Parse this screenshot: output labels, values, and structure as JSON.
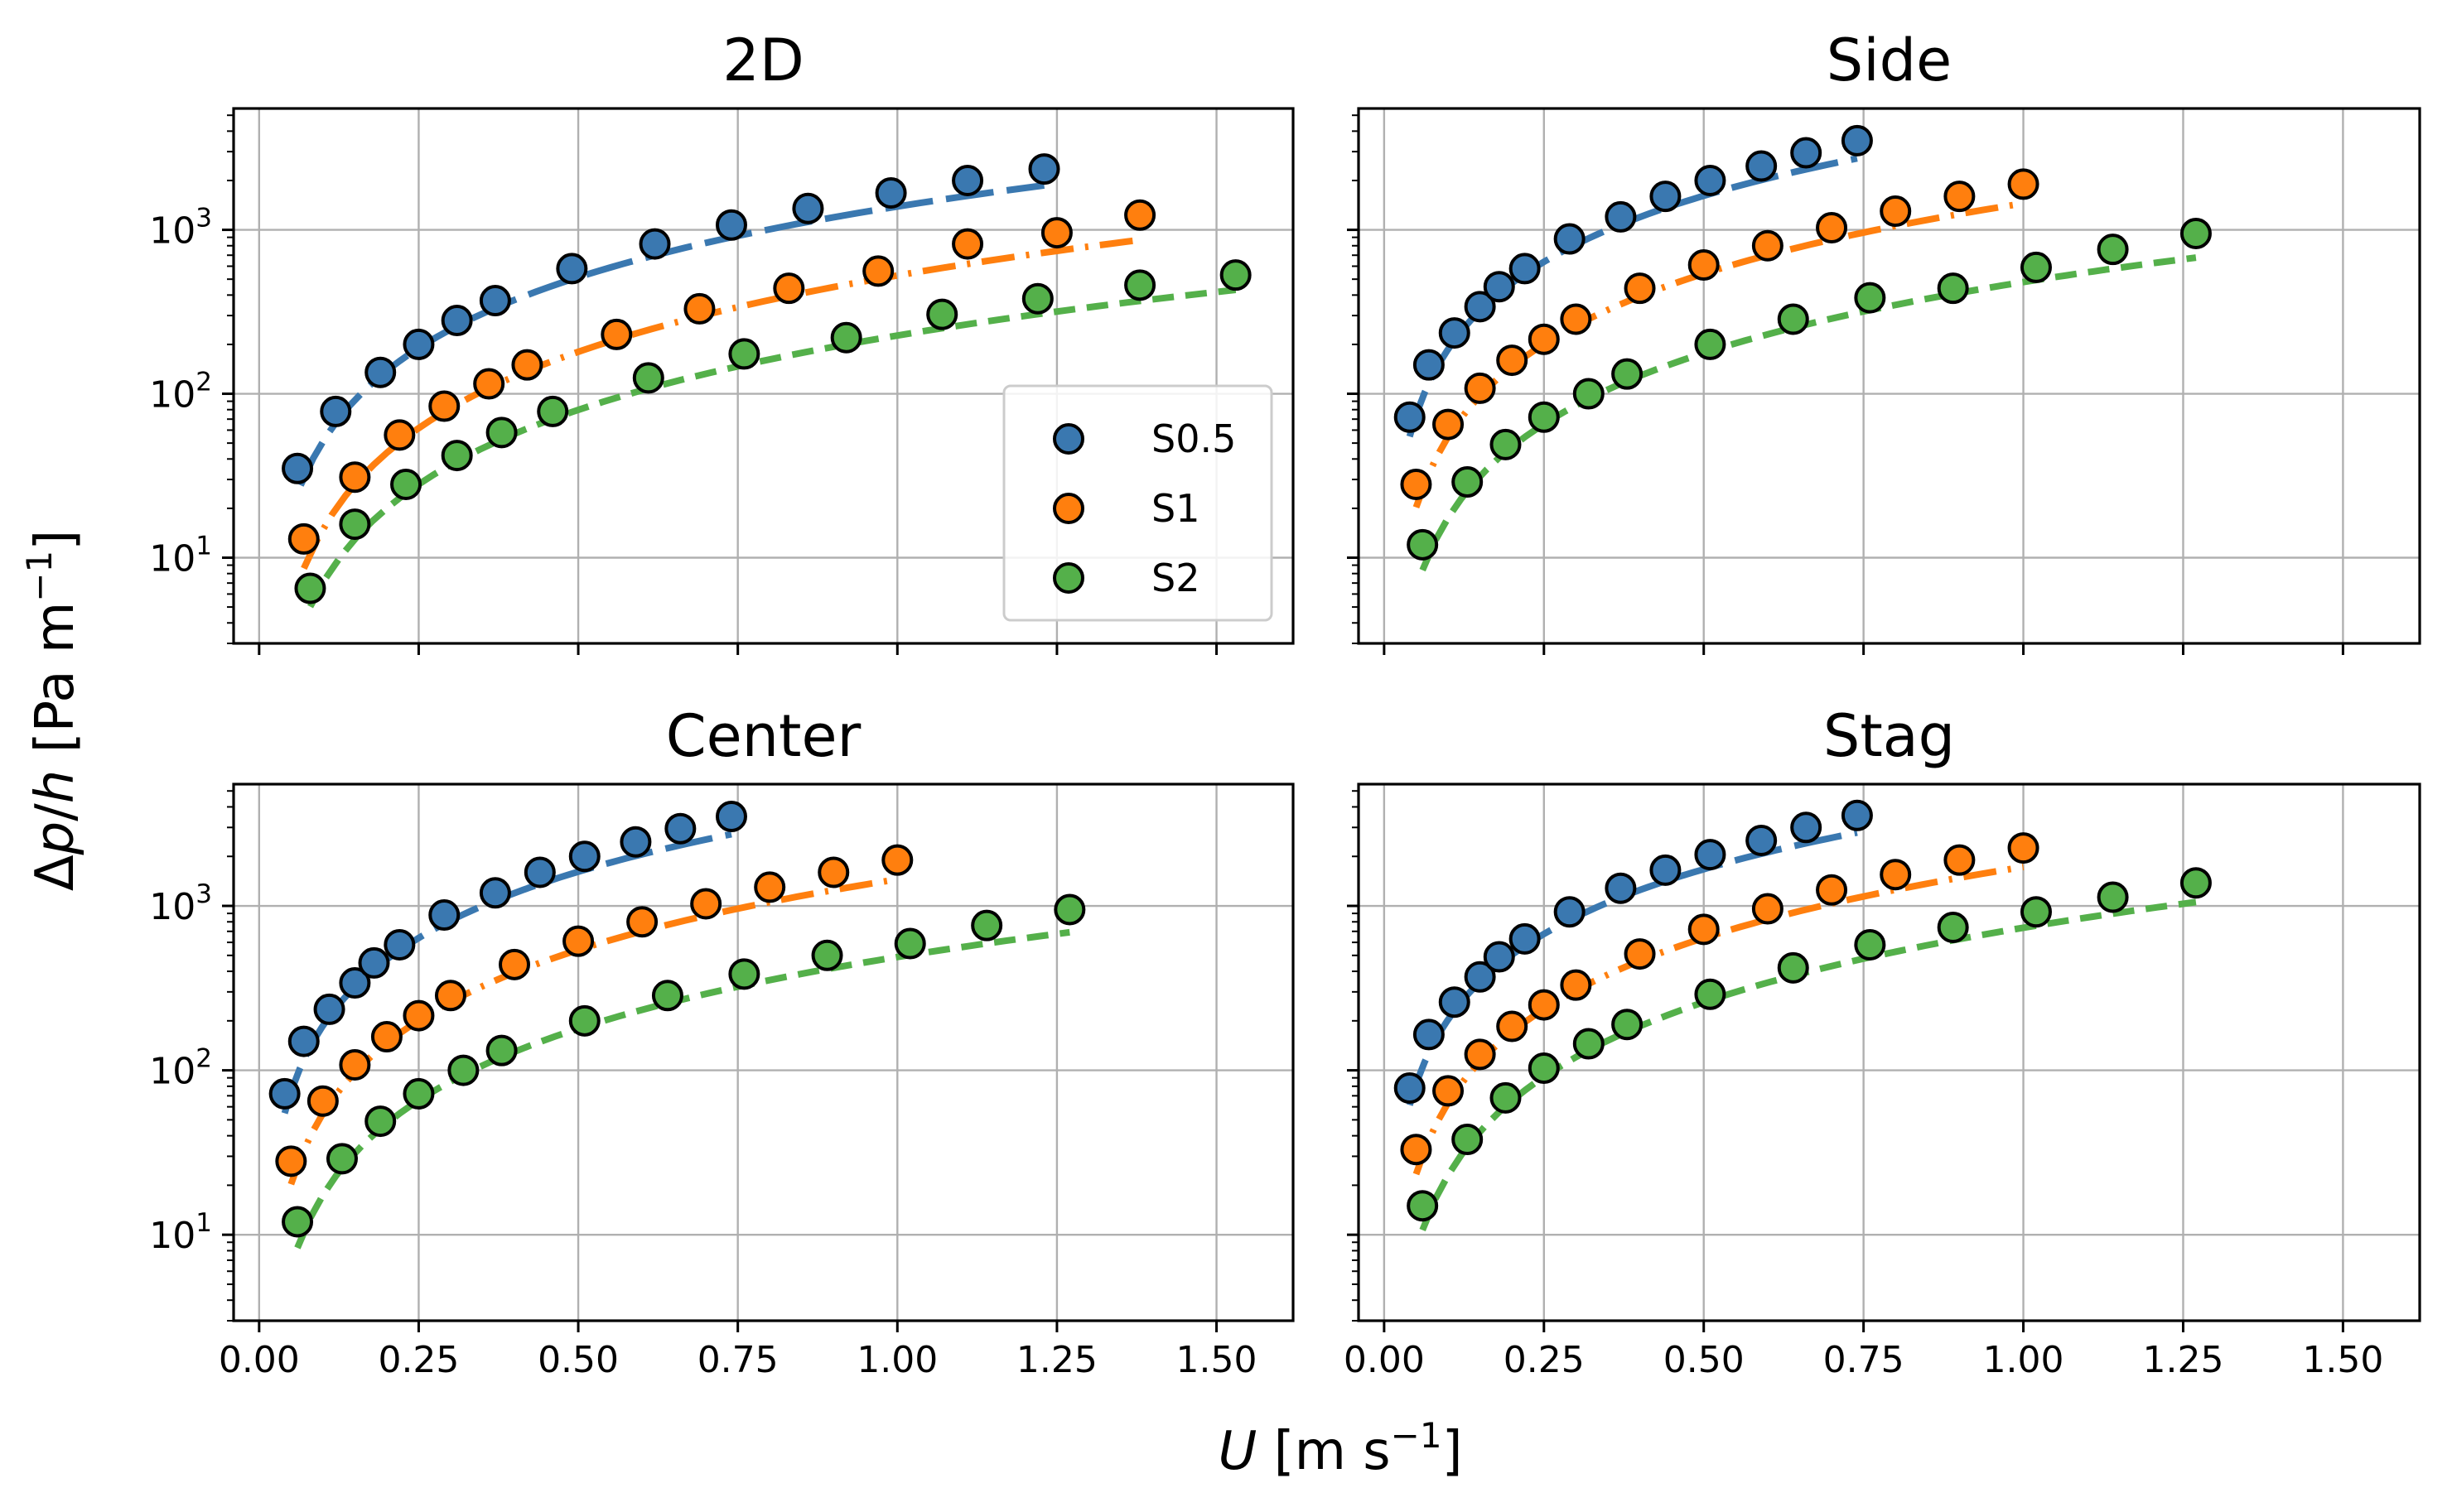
{
  "chart_data": {
    "type": "scatter",
    "ylabel": "Δp/h [Pa m⁻¹]",
    "xlabel": "U [m s⁻¹]",
    "yscale": "log",
    "xlim": [
      -0.04,
      1.62
    ],
    "ylim": [
      3,
      5500
    ],
    "x_ticks": [
      "0.00",
      "0.25",
      "0.50",
      "0.75",
      "1.00",
      "1.25",
      "1.50"
    ],
    "x_tick_values": [
      0,
      0.25,
      0.5,
      0.75,
      1.0,
      1.25,
      1.5
    ],
    "y_major_ticks": [
      10,
      100,
      1000
    ],
    "y_tick_labels": [
      {
        "base": "10",
        "exp": "1"
      },
      {
        "base": "10",
        "exp": "2"
      },
      {
        "base": "10",
        "exp": "3"
      }
    ],
    "grid": true,
    "legend": {
      "placement": "lower-right of first panel",
      "entries": [
        "S0.5",
        "S1",
        "S2"
      ]
    },
    "colors": {
      "S0.5": "#3a78b0",
      "S1": "#ff7f0e",
      "S2": "#54b04a"
    },
    "panels": [
      {
        "title": "2D",
        "series": [
          {
            "name": "S0.5",
            "x": [
              0.06,
              0.12,
              0.19,
              0.25,
              0.31,
              0.37,
              0.49,
              0.62,
              0.74,
              0.86,
              0.99,
              1.11,
              1.23
            ],
            "y": [
              35,
              78,
              135,
              200,
              280,
              370,
              580,
              820,
              1070,
              1350,
              1680,
              2000,
              2350
            ],
            "fit_x": [
              0.065,
              1.23
            ]
          },
          {
            "name": "S1",
            "x": [
              0.07,
              0.15,
              0.22,
              0.29,
              0.36,
              0.42,
              0.56,
              0.69,
              0.83,
              0.97,
              1.11,
              1.25,
              1.38
            ],
            "y": [
              13,
              31,
              56,
              84,
              115,
              150,
              230,
              330,
              440,
              560,
              820,
              960,
              1230
            ],
            "fit_x": [
              0.07,
              1.38
            ]
          },
          {
            "name": "S2",
            "x": [
              0.08,
              0.15,
              0.23,
              0.31,
              0.38,
              0.46,
              0.61,
              0.76,
              0.92,
              1.07,
              1.22,
              1.38,
              1.53
            ],
            "y": [
              6.5,
              16,
              28,
              42,
              58,
              78,
              125,
              175,
              220,
              305,
              380,
              460,
              530
            ],
            "fit_x": [
              0.08,
              1.53
            ]
          }
        ]
      },
      {
        "title": "Side",
        "series": [
          {
            "name": "S0.5",
            "x": [
              0.04,
              0.07,
              0.11,
              0.15,
              0.18,
              0.22,
              0.29,
              0.37,
              0.44,
              0.51,
              0.59,
              0.66,
              0.74
            ],
            "y": [
              72,
              150,
              235,
              340,
              450,
              580,
              880,
              1200,
              1600,
              2000,
              2450,
              2950,
              3500
            ],
            "fit_x": [
              0.04,
              0.74
            ]
          },
          {
            "name": "S1",
            "x": [
              0.05,
              0.1,
              0.15,
              0.2,
              0.25,
              0.3,
              0.4,
              0.5,
              0.6,
              0.7,
              0.8,
              0.9,
              1.0
            ],
            "y": [
              28,
              65,
              108,
              160,
              215,
              285,
              440,
              610,
              800,
              1030,
              1300,
              1600,
              1900
            ],
            "fit_x": [
              0.05,
              1.0
            ]
          },
          {
            "name": "S2",
            "x": [
              0.06,
              0.13,
              0.19,
              0.25,
              0.32,
              0.38,
              0.51,
              0.64,
              0.76,
              0.89,
              1.02,
              1.14,
              1.27
            ],
            "y": [
              12,
              29,
              49,
              72,
              100,
              132,
              200,
              285,
              385,
              440,
              590,
              760,
              950
            ],
            "fit_x": [
              0.06,
              1.27
            ]
          }
        ]
      },
      {
        "title": "Center",
        "series": [
          {
            "name": "S0.5",
            "x": [
              0.04,
              0.07,
              0.11,
              0.15,
              0.18,
              0.22,
              0.29,
              0.37,
              0.44,
              0.51,
              0.59,
              0.66,
              0.74
            ],
            "y": [
              72,
              150,
              235,
              340,
              450,
              580,
              880,
              1200,
              1600,
              2000,
              2450,
              2950,
              3500
            ],
            "fit_x": [
              0.04,
              0.74
            ]
          },
          {
            "name": "S1",
            "x": [
              0.05,
              0.1,
              0.15,
              0.2,
              0.25,
              0.3,
              0.4,
              0.5,
              0.6,
              0.7,
              0.8,
              0.9,
              1.0
            ],
            "y": [
              28,
              65,
              108,
              160,
              215,
              285,
              440,
              610,
              800,
              1030,
              1300,
              1600,
              1900
            ],
            "fit_x": [
              0.05,
              1.0
            ]
          },
          {
            "name": "S2",
            "x": [
              0.06,
              0.13,
              0.19,
              0.25,
              0.32,
              0.38,
              0.51,
              0.64,
              0.76,
              0.89,
              1.02,
              1.14,
              1.27
            ],
            "y": [
              12,
              29,
              49,
              72,
              100,
              132,
              200,
              285,
              385,
              500,
              590,
              760,
              950
            ],
            "fit_x": [
              0.06,
              1.27
            ]
          }
        ]
      },
      {
        "title": "Stag",
        "series": [
          {
            "name": "S0.5",
            "x": [
              0.04,
              0.07,
              0.11,
              0.15,
              0.18,
              0.22,
              0.29,
              0.37,
              0.44,
              0.51,
              0.59,
              0.66,
              0.74
            ],
            "y": [
              78,
              165,
              260,
              370,
              490,
              630,
              920,
              1280,
              1650,
              2050,
              2500,
              3000,
              3550
            ],
            "fit_x": [
              0.04,
              0.74
            ]
          },
          {
            "name": "S1",
            "x": [
              0.05,
              0.1,
              0.15,
              0.2,
              0.25,
              0.3,
              0.4,
              0.5,
              0.6,
              0.7,
              0.8,
              0.9,
              1.0
            ],
            "y": [
              33,
              75,
              125,
              185,
              250,
              330,
              510,
              720,
              960,
              1250,
              1550,
              1900,
              2250
            ],
            "fit_x": [
              0.05,
              1.0
            ]
          },
          {
            "name": "S2",
            "x": [
              0.06,
              0.13,
              0.19,
              0.25,
              0.32,
              0.38,
              0.51,
              0.64,
              0.76,
              0.89,
              1.02,
              1.14,
              1.27
            ],
            "y": [
              15,
              38,
              68,
              103,
              145,
              190,
              290,
              420,
              580,
              740,
              920,
              1130,
              1380
            ],
            "fit_x": [
              0.06,
              1.27
            ]
          }
        ]
      }
    ]
  }
}
